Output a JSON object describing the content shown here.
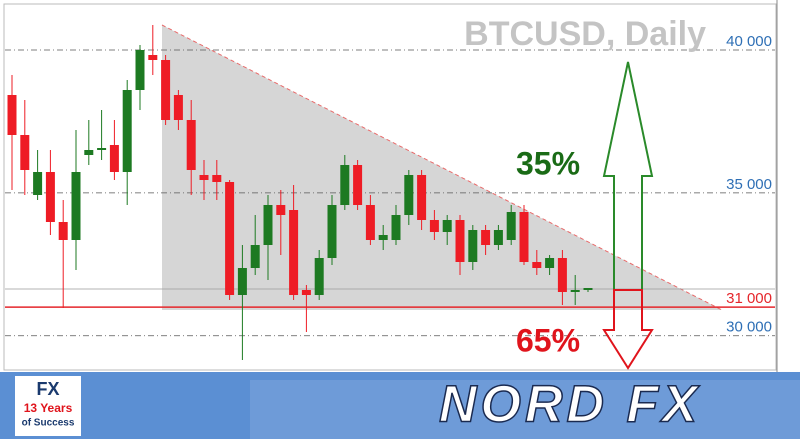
{
  "chart_data": {
    "type": "candlestick",
    "title": "BTCUSD, Daily",
    "candles": {
      "open": [
        38425,
        37025,
        34925,
        35730,
        33980,
        33350,
        36325,
        36500,
        36675,
        35730,
        38600,
        39825,
        39650,
        38425,
        37550,
        35625,
        35625,
        35380,
        31425,
        32370,
        33175,
        34575,
        34400,
        31600,
        31425,
        32720,
        34575,
        35975,
        34575,
        33350,
        33350,
        34225,
        35625,
        34050,
        33630,
        34050,
        32580,
        33700,
        33175,
        33350,
        34330,
        32580,
        32370,
        32720,
        31530,
        31600
      ],
      "high": [
        39125,
        38250,
        36500,
        36500,
        34750,
        37200,
        37550,
        37900,
        37550,
        38950,
        40175,
        40875,
        39825,
        38600,
        38250,
        36150,
        36150,
        35450,
        33175,
        34225,
        34925,
        35100,
        35275,
        31775,
        33000,
        34925,
        36325,
        36150,
        34925,
        33875,
        34575,
        35800,
        35800,
        34400,
        34225,
        34225,
        33875,
        33875,
        33875,
        34575,
        34575,
        33000,
        32825,
        33000,
        32125,
        31670
      ],
      "low": [
        35100,
        34925,
        34750,
        33525,
        30970,
        32300,
        35975,
        36150,
        35450,
        34575,
        37900,
        39125,
        37375,
        37200,
        34925,
        34750,
        34750,
        31250,
        29150,
        32125,
        31950,
        32825,
        31250,
        30130,
        31250,
        32475,
        34400,
        34400,
        33175,
        33000,
        33175,
        33875,
        33700,
        33350,
        33175,
        32125,
        32300,
        32825,
        33000,
        33175,
        32475,
        32125,
        32125,
        31075,
        31075,
        31530
      ],
      "close": [
        37025,
        35800,
        35730,
        33980,
        33350,
        35730,
        36500,
        36570,
        35730,
        38600,
        40000,
        39650,
        37550,
        37550,
        35800,
        35450,
        35380,
        31425,
        32370,
        33175,
        34575,
        34225,
        31425,
        31425,
        32720,
        34575,
        35975,
        34575,
        33350,
        33525,
        34225,
        35625,
        34050,
        33630,
        34050,
        32580,
        33700,
        33175,
        33700,
        34330,
        32580,
        32370,
        32720,
        31530,
        31600,
        31670
      ]
    },
    "up_color": "#1d7a22",
    "down_color": "#ee1c25",
    "ylim": [
      28800,
      41575
    ],
    "yticks": [
      {
        "value": 40000,
        "label": "40 000"
      },
      {
        "value": 35000,
        "label": "35 000"
      },
      {
        "value": 30000,
        "label": "30 000"
      }
    ],
    "support": {
      "value": 31000,
      "label": "31 000",
      "color": "#e5262b"
    },
    "annotations": [
      {
        "text": "35%",
        "color": "#1a6b16"
      },
      {
        "text": "65%",
        "color": "#e0141c"
      }
    ]
  },
  "footer": {
    "badge_brand": "FX",
    "badge_line1": "13 Years",
    "badge_line2": "of Success",
    "brand": "NORD FX"
  }
}
